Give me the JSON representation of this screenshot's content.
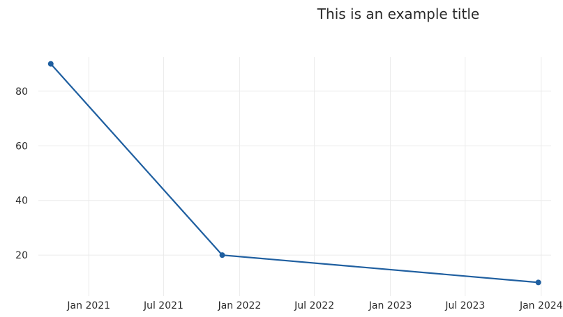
{
  "chart_data": {
    "type": "line",
    "title": "This is an example title",
    "xlabel": "",
    "ylabel": "",
    "x_axis_type": "date",
    "xlim": [
      "2020-09-01",
      "2024-01-25"
    ],
    "ylim": [
      5,
      95
    ],
    "x_ticks": [
      {
        "date": "2021-01-01",
        "label": "Jan 2021"
      },
      {
        "date": "2021-07-01",
        "label": "Jul 2021"
      },
      {
        "date": "2022-01-01",
        "label": "Jan 2022"
      },
      {
        "date": "2022-07-01",
        "label": "Jul 2022"
      },
      {
        "date": "2023-01-01",
        "label": "Jan 2023"
      },
      {
        "date": "2023-07-01",
        "label": "Jul 2023"
      },
      {
        "date": "2024-01-01",
        "label": "Jan 2024"
      }
    ],
    "y_ticks": [
      20,
      40,
      60,
      80
    ],
    "grid": true,
    "legend": "none",
    "series": [
      {
        "color": "#1f5fa0",
        "x": [
          "2020-10-01",
          "2021-11-20",
          "2023-12-25"
        ],
        "y": [
          90,
          20,
          10
        ]
      }
    ]
  }
}
